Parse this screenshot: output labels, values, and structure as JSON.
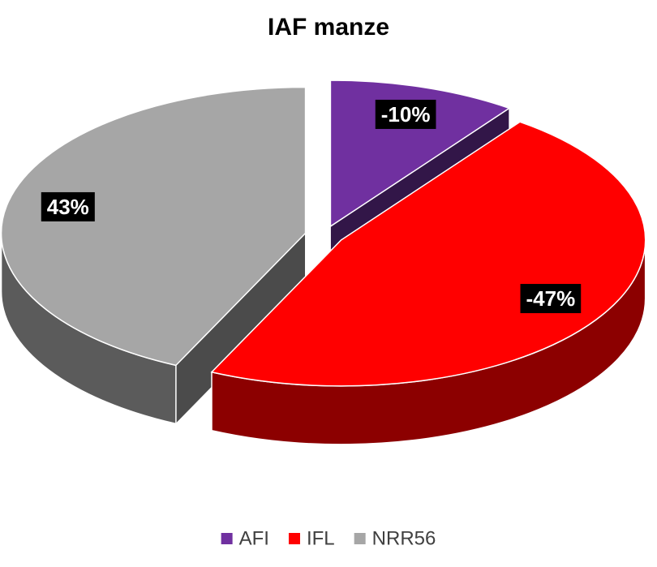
{
  "chart_data": {
    "type": "pie",
    "title": "IAF manze",
    "categories": [
      "AFI",
      "IFL",
      "NRR56"
    ],
    "values": [
      -10,
      -47,
      43
    ],
    "value_labels": [
      "-10%",
      "-47%",
      "43%"
    ],
    "colors": [
      "#7030a0",
      "#ff0000",
      "#a6a6a6"
    ],
    "legend": "bottom"
  }
}
